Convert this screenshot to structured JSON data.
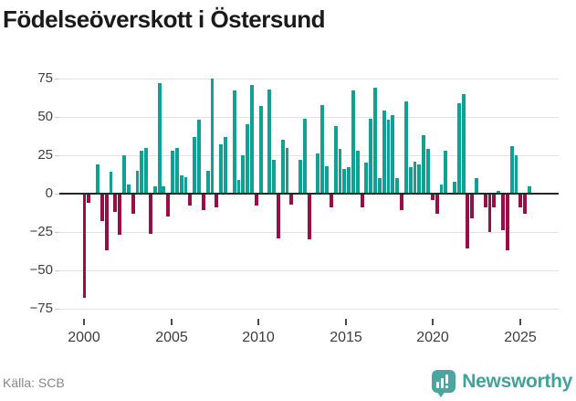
{
  "title": "Födelseöverskott i Östersund",
  "source": "Källa: SCB",
  "logo": {
    "text": "Newsworthy",
    "icon": "bar-chart-speech-bubble-icon",
    "text_color": "#3fa39c",
    "icon_color": "#4aa69f"
  },
  "colors": {
    "background": "#ffffff",
    "positive_bar": "#0fa294",
    "negative_bar": "#9a0e47",
    "gridline": "#e3e3e3",
    "zero_line": "#262626",
    "axis_text": "#3d3d3d",
    "title_text": "#1a1a1a",
    "source_text": "#878787"
  },
  "chart_data": {
    "type": "bar",
    "title": "Födelseöverskott i Östersund",
    "series_name": "Födelseöverskott (kvartal)",
    "frequency": "quarterly",
    "start_period": "2000-Q1",
    "end_period": "2025-Q2",
    "values": [
      -68,
      -6,
      0,
      19,
      -18,
      -37,
      14,
      -12,
      -27,
      25,
      6,
      -13,
      15,
      28,
      30,
      -26,
      5,
      72,
      5,
      -15,
      28,
      30,
      12,
      11,
      -8,
      37,
      48,
      -11,
      15,
      75,
      -9,
      32,
      37,
      0,
      67,
      9,
      25,
      45,
      71,
      -8,
      57,
      0,
      68,
      22,
      -29,
      35,
      30,
      -7,
      0,
      22,
      49,
      -30,
      0,
      26,
      58,
      18,
      -9,
      44,
      29,
      16,
      17,
      67,
      28,
      -9,
      20,
      49,
      69,
      10,
      54,
      48,
      51,
      10,
      -11,
      60,
      17,
      21,
      19,
      38,
      29,
      -4,
      -13,
      6,
      28,
      0,
      8,
      59,
      65,
      -36,
      -16,
      10,
      0,
      -9,
      -25,
      -9,
      2,
      -24,
      -37,
      31,
      25,
      -9,
      -13,
      5
    ],
    "x_tick_labels": [
      "2000",
      "2005",
      "2010",
      "2015",
      "2020",
      "2025"
    ],
    "y_ticks": [
      75,
      50,
      25,
      0,
      -25,
      -50,
      -75
    ],
    "y_tick_labels": [
      "75",
      "50",
      "25",
      "0",
      "−25",
      "−50",
      "−75"
    ],
    "ylim": [
      -80,
      80
    ],
    "grid": true,
    "legend": "none"
  }
}
